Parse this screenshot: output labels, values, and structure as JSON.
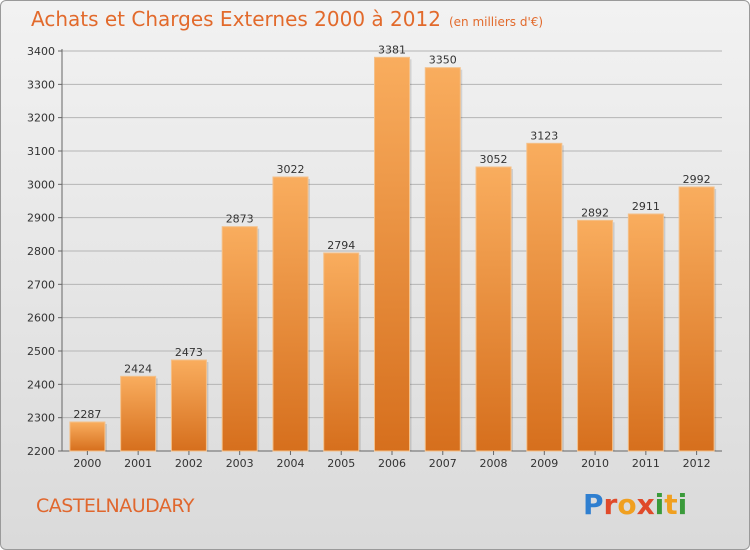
{
  "header": {
    "title": "Achats et Charges Externes 2000 à 2012",
    "unit": "(en milliers d'€)"
  },
  "footer": {
    "city": "CASTELNAUDARY",
    "logo_text": "Proxiti",
    "logo_colors": [
      "#2f7fd0",
      "#e04a2a",
      "#f0a020",
      "#e04a2a",
      "#3a9a3a",
      "#f0a020",
      "#3a9a3a"
    ]
  },
  "colors": {
    "title": "#e26a2c",
    "bar_light": "#f7a95a",
    "bar_dark": "#d9721f",
    "grid": "#b8b8b8"
  },
  "chart_data": {
    "type": "bar",
    "title": "Achats et Charges Externes 2000 à 2012",
    "subtitle": "(en milliers d'€)",
    "xlabel": "",
    "ylabel": "",
    "categories": [
      "2000",
      "2001",
      "2002",
      "2003",
      "2004",
      "2005",
      "2006",
      "2007",
      "2008",
      "2009",
      "2010",
      "2011",
      "2012"
    ],
    "values": [
      2287,
      2424,
      2473,
      2873,
      3022,
      2794,
      3381,
      3350,
      3052,
      3123,
      2892,
      2911,
      2992
    ],
    "ylim": [
      2200,
      3400
    ],
    "yticks": [
      2200,
      2300,
      2400,
      2500,
      2600,
      2700,
      2800,
      2900,
      3000,
      3100,
      3200,
      3300,
      3400
    ],
    "grid": true,
    "data_labels": true
  }
}
